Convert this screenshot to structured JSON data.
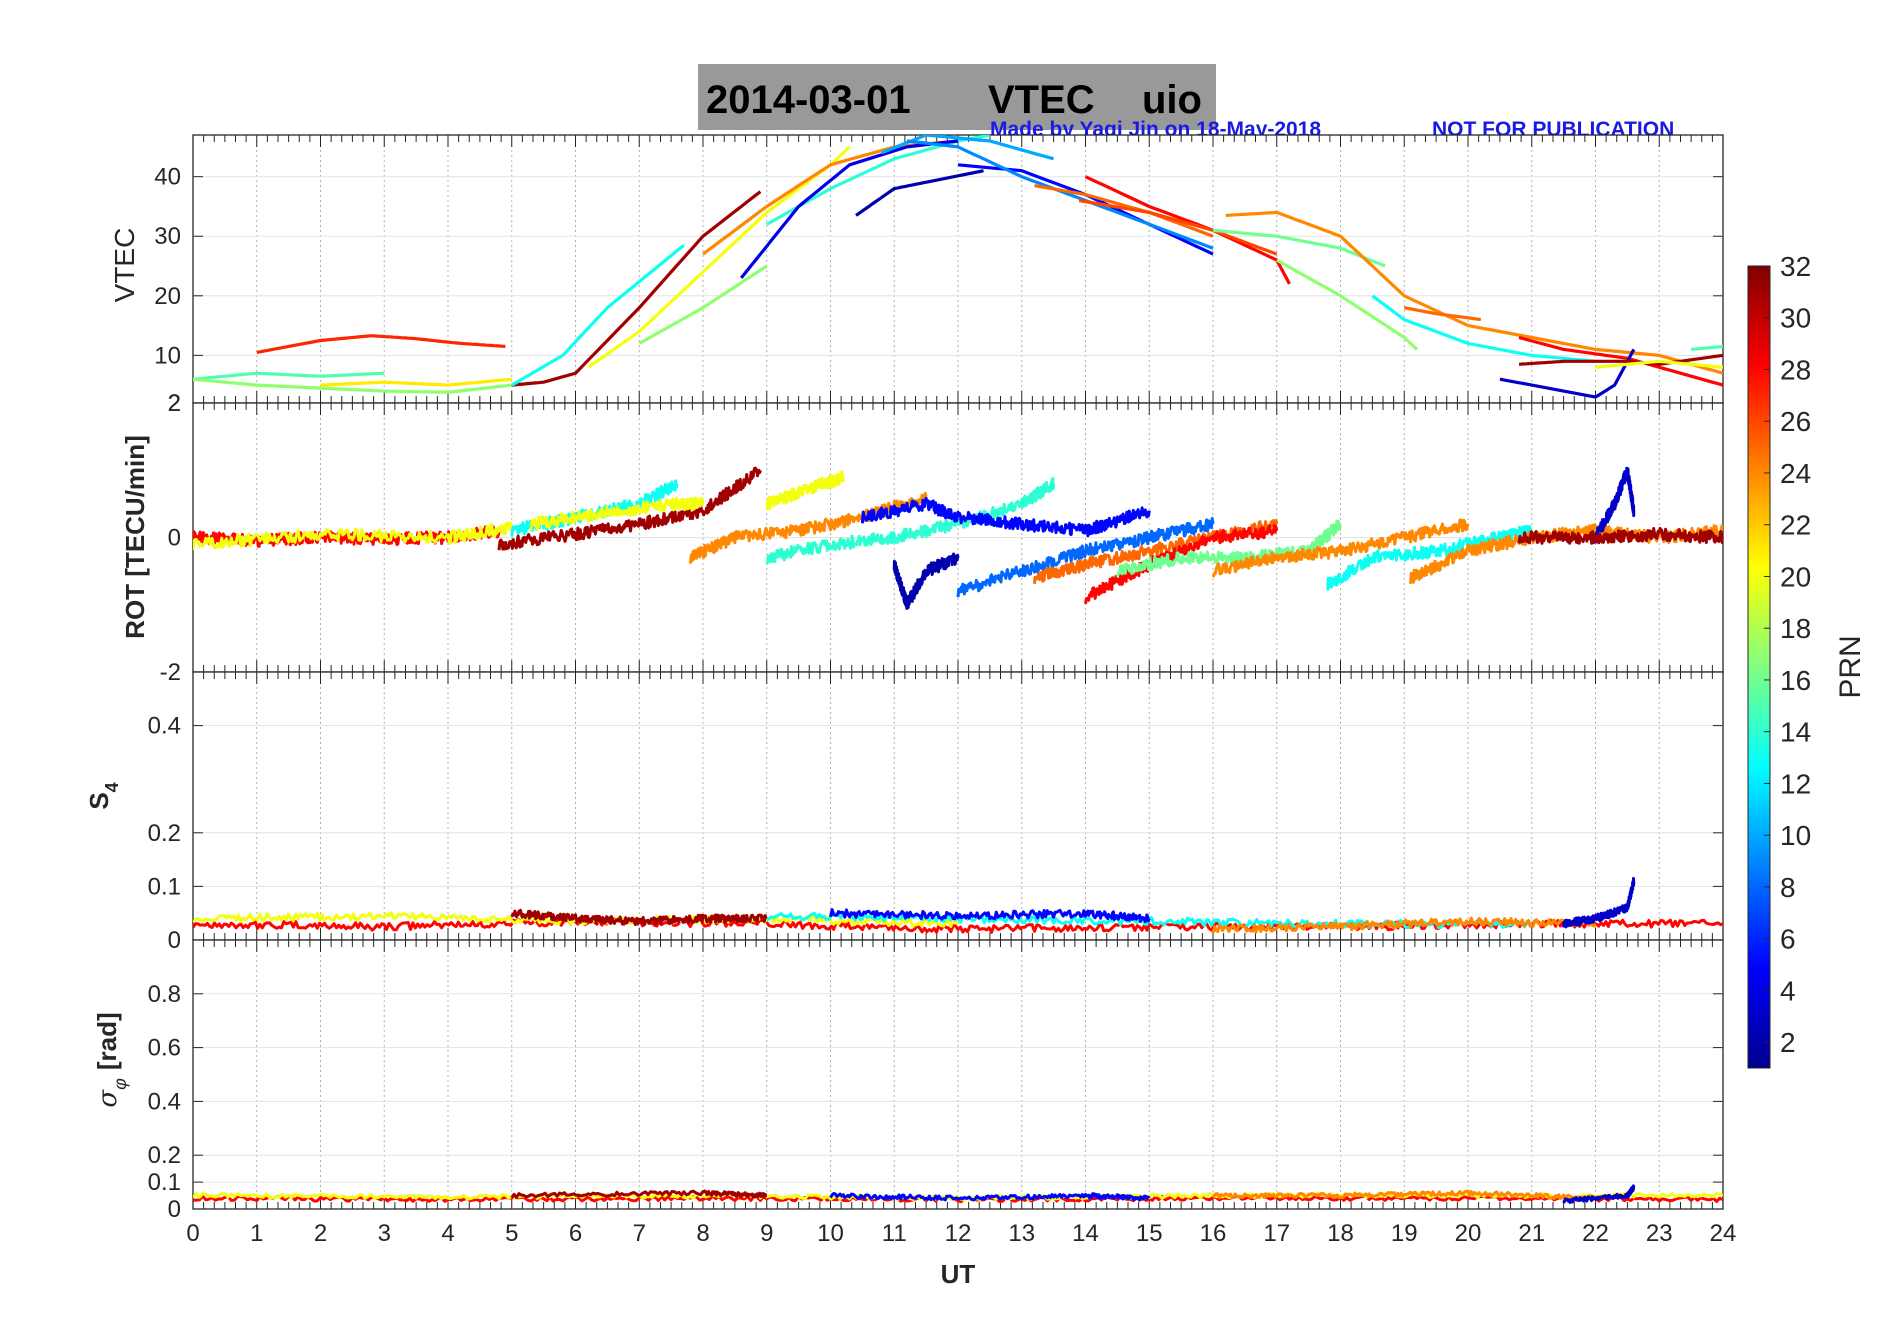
{
  "title": {
    "date": "2014-03-01",
    "quantity": "VTEC",
    "station": "uio",
    "background": "#999999"
  },
  "credit": {
    "author_text": "Made by Yaqi Jin on 18-May-2018",
    "notice": "NOT FOR PUBLICATION",
    "color": "#1a1ae6"
  },
  "x_axis": {
    "label": "UT",
    "min": 0,
    "max": 24,
    "ticks": [
      "0",
      "1",
      "2",
      "3",
      "4",
      "5",
      "6",
      "7",
      "8",
      "9",
      "10",
      "11",
      "12",
      "13",
      "14",
      "15",
      "16",
      "17",
      "18",
      "19",
      "20",
      "21",
      "22",
      "23",
      "24"
    ]
  },
  "colorbar": {
    "label": "PRN",
    "ticks": [
      "2",
      "4",
      "6",
      "8",
      "10",
      "12",
      "14",
      "16",
      "18",
      "20",
      "22",
      "24",
      "26",
      "28",
      "30",
      "32"
    ],
    "palette": [
      "#00008f",
      "#0000ff",
      "#0080ff",
      "#00ffff",
      "#80ff80",
      "#ffff00",
      "#ff8000",
      "#ff0000",
      "#800000"
    ]
  },
  "chart_data": [
    {
      "type": "line",
      "name": "vtec-panel",
      "ylabel": "VTEC",
      "ylim": [
        2,
        47
      ],
      "yticks": [
        "10",
        "20",
        "30",
        "40"
      ],
      "bottom_label": "2",
      "color_by": "PRN",
      "series": [
        {
          "prn": 27,
          "x": [
            1.0,
            2.0,
            2.8,
            3.5,
            4.2,
            4.9
          ],
          "y": [
            10.5,
            12.5,
            13.3,
            12.8,
            12.0,
            11.5
          ]
        },
        {
          "prn": 15,
          "x": [
            0.0,
            1.0,
            2.0,
            3.0
          ],
          "y": [
            6.0,
            7.0,
            6.5,
            7.0
          ]
        },
        {
          "prn": 17,
          "x": [
            0.0,
            1.0,
            2.0,
            3.0,
            4.0,
            5.0
          ],
          "y": [
            6.0,
            5.0,
            4.5,
            4.0,
            3.8,
            5.0
          ]
        },
        {
          "prn": 21,
          "x": [
            2.0,
            3.0,
            4.0,
            5.0
          ],
          "y": [
            5.0,
            5.5,
            5.0,
            6.0
          ]
        },
        {
          "prn": 31,
          "x": [
            5.0,
            5.5,
            6.0,
            7.0,
            8.0,
            8.9
          ],
          "y": [
            5.0,
            5.5,
            7.0,
            18.0,
            30.0,
            37.5
          ]
        },
        {
          "prn": 13,
          "x": [
            5.0,
            5.8,
            6.5,
            7.7
          ],
          "y": [
            5.0,
            10.0,
            18.0,
            28.5
          ]
        },
        {
          "prn": 20,
          "x": [
            6.2,
            7.0,
            8.0,
            9.0,
            10.0,
            10.3
          ],
          "y": [
            8.0,
            14.0,
            24.0,
            34.0,
            42.0,
            45.0
          ]
        },
        {
          "prn": 17,
          "x": [
            7.0,
            8.0,
            9.0
          ],
          "y": [
            12.0,
            18.0,
            25.0
          ]
        },
        {
          "prn": 24,
          "x": [
            8.0,
            9.0,
            10.0,
            11.0,
            12.0
          ],
          "y": [
            27.0,
            35.0,
            42.0,
            45.0,
            46.0
          ]
        },
        {
          "prn": 14,
          "x": [
            9.0,
            10.0,
            11.0,
            12.0,
            12.5
          ],
          "y": [
            32.0,
            38.0,
            43.0,
            46.0,
            47.0
          ]
        },
        {
          "prn": 4,
          "x": [
            8.6,
            9.5,
            10.3,
            11.2,
            12.0
          ],
          "y": [
            23.0,
            35.0,
            42.0,
            45.0,
            46.0
          ]
        },
        {
          "prn": 2,
          "x": [
            10.4,
            11.0,
            11.7,
            12.4
          ],
          "y": [
            33.5,
            38.0,
            39.5,
            41.0
          ]
        },
        {
          "prn": 10,
          "x": [
            10.8,
            11.5,
            12.5,
            13.5
          ],
          "y": [
            44.0,
            47.0,
            46.0,
            43.0
          ]
        },
        {
          "prn": 5,
          "x": [
            12.0,
            13.0,
            14.0,
            15.0,
            16.0
          ],
          "y": [
            42.0,
            41.0,
            37.0,
            32.0,
            27.0
          ]
        },
        {
          "prn": 9,
          "x": [
            11.2,
            12.0,
            13.0,
            14.0,
            15.0,
            16.0
          ],
          "y": [
            46.0,
            45.0,
            40.0,
            36.0,
            32.0,
            28.0
          ]
        },
        {
          "prn": 25,
          "x": [
            13.2,
            14.0,
            15.0,
            16.0
          ],
          "y": [
            38.5,
            37.0,
            34.0,
            30.0
          ]
        },
        {
          "prn": 28,
          "x": [
            14.0,
            15.0,
            16.0,
            17.0,
            17.2
          ],
          "y": [
            40.0,
            35.0,
            31.0,
            26.0,
            22.0
          ]
        },
        {
          "prn": 26,
          "x": [
            13.9,
            15.0,
            16.0,
            17.0
          ],
          "y": [
            36.0,
            34.0,
            31.0,
            27.0
          ]
        },
        {
          "prn": 16,
          "x": [
            16.0,
            17.0,
            18.0,
            18.7
          ],
          "y": [
            31.0,
            30.0,
            28.0,
            25.0
          ]
        },
        {
          "prn": 24,
          "x": [
            16.2,
            17.0,
            18.0,
            19.0,
            20.0,
            21.0,
            22.0,
            23.0,
            24.0
          ],
          "y": [
            33.5,
            34.0,
            30.0,
            20.0,
            15.0,
            13.0,
            11.0,
            10.0,
            7.0
          ]
        },
        {
          "prn": 17,
          "x": [
            17.0,
            18.0,
            19.0,
            19.2
          ],
          "y": [
            26.0,
            20.0,
            13.0,
            11.0
          ]
        },
        {
          "prn": 13,
          "x": [
            18.5,
            19.0,
            20.0,
            21.0,
            22.0
          ],
          "y": [
            20.0,
            16.0,
            12.0,
            10.0,
            9.0
          ]
        },
        {
          "prn": 25,
          "x": [
            19.0,
            19.5,
            20.2
          ],
          "y": [
            18.0,
            17.0,
            16.0
          ]
        },
        {
          "prn": 28,
          "x": [
            20.8,
            21.5,
            22.5,
            23.0,
            24.0
          ],
          "y": [
            13.0,
            11.0,
            9.5,
            8.0,
            5.0
          ]
        },
        {
          "prn": 3,
          "x": [
            20.5,
            21.0,
            21.5,
            22.0,
            22.3,
            22.6
          ],
          "y": [
            6.0,
            5.0,
            4.0,
            3.0,
            5.0,
            11.0
          ]
        },
        {
          "prn": 31,
          "x": [
            20.8,
            21.5,
            22.5,
            23.0,
            24.0
          ],
          "y": [
            8.5,
            9.0,
            9.0,
            8.5,
            10.0
          ]
        },
        {
          "prn": 20,
          "x": [
            22.0,
            23.0,
            24.0
          ],
          "y": [
            8.0,
            9.0,
            8.0
          ]
        },
        {
          "prn": 15,
          "x": [
            23.5,
            24.0
          ],
          "y": [
            11.0,
            11.5
          ]
        }
      ]
    },
    {
      "type": "line",
      "name": "rot-panel",
      "ylabel": "ROT [TECU/min]",
      "ylim": [
        -2,
        2
      ],
      "yticks": [
        "2",
        "0",
        "-2"
      ],
      "color_by": "PRN",
      "series": [
        {
          "prn": 28,
          "x": [
            0.0,
            1.0,
            2.0,
            3.0,
            4.0,
            4.8
          ],
          "y": [
            0.0,
            -0.05,
            0.0,
            -0.02,
            0.0,
            0.1
          ]
        },
        {
          "prn": 20,
          "x": [
            0.0,
            2.0,
            4.0,
            5.0
          ],
          "y": [
            -0.1,
            0.05,
            0.0,
            0.15
          ]
        },
        {
          "prn": 31,
          "x": [
            4.8,
            6.0,
            7.0,
            8.0,
            8.9
          ],
          "y": [
            -0.1,
            0.05,
            0.2,
            0.4,
            1.0
          ]
        },
        {
          "prn": 13,
          "x": [
            5.0,
            6.0,
            7.0,
            7.6
          ],
          "y": [
            0.1,
            0.3,
            0.5,
            0.8
          ]
        },
        {
          "prn": 20,
          "x": [
            5.3,
            6.0,
            7.5,
            8.0
          ],
          "y": [
            0.2,
            0.3,
            0.5,
            0.5
          ]
        },
        {
          "prn": 24,
          "x": [
            7.8,
            8.5,
            9.5,
            10.5,
            11.5
          ],
          "y": [
            -0.3,
            0.0,
            0.1,
            0.3,
            0.6
          ]
        },
        {
          "prn": 20,
          "x": [
            9.0,
            9.6,
            10.2
          ],
          "y": [
            0.5,
            0.7,
            0.9
          ]
        },
        {
          "prn": 14,
          "x": [
            9.0,
            10.0,
            11.0,
            12.0,
            13.0,
            13.5
          ],
          "y": [
            -0.3,
            -0.1,
            0.0,
            0.2,
            0.5,
            0.8
          ]
        },
        {
          "prn": 5,
          "x": [
            10.5,
            11.5,
            12.0,
            13.0,
            14.0,
            15.0
          ],
          "y": [
            0.3,
            0.5,
            0.3,
            0.2,
            0.1,
            0.4
          ]
        },
        {
          "prn": 2,
          "x": [
            11.0,
            11.2,
            11.5,
            12.0
          ],
          "y": [
            -0.4,
            -1.0,
            -0.5,
            -0.3
          ]
        },
        {
          "prn": 8,
          "x": [
            12.0,
            13.0,
            14.0,
            15.0,
            16.0
          ],
          "y": [
            -0.8,
            -0.5,
            -0.2,
            0.0,
            0.2
          ]
        },
        {
          "prn": 25,
          "x": [
            13.2,
            14.0,
            15.0,
            16.0,
            17.0
          ],
          "y": [
            -0.6,
            -0.4,
            -0.2,
            0.0,
            0.2
          ]
        },
        {
          "prn": 28,
          "x": [
            14.0,
            15.0,
            16.0,
            17.0
          ],
          "y": [
            -0.9,
            -0.4,
            0.0,
            0.1
          ]
        },
        {
          "prn": 16,
          "x": [
            14.5,
            15.5,
            16.5,
            17.5,
            18.0
          ],
          "y": [
            -0.5,
            -0.3,
            -0.3,
            -0.2,
            0.2
          ]
        },
        {
          "prn": 24,
          "x": [
            16.0,
            17.0,
            18.0,
            19.0,
            20.0
          ],
          "y": [
            -0.5,
            -0.3,
            -0.2,
            0.0,
            0.2
          ]
        },
        {
          "prn": 13,
          "x": [
            17.8,
            18.5,
            19.5,
            20.5,
            21.0
          ],
          "y": [
            -0.7,
            -0.3,
            -0.2,
            0.0,
            0.1
          ]
        },
        {
          "prn": 24,
          "x": [
            19.1,
            20.0,
            21.0,
            22.0,
            23.0,
            24.0
          ],
          "y": [
            -0.6,
            -0.2,
            0.0,
            0.1,
            0.0,
            0.1
          ]
        },
        {
          "prn": 3,
          "x": [
            22.0,
            22.3,
            22.5,
            22.6
          ],
          "y": [
            0.0,
            0.5,
            1.0,
            0.4
          ]
        },
        {
          "prn": 31,
          "x": [
            20.8,
            22.0,
            23.0,
            24.0
          ],
          "y": [
            0.0,
            0.0,
            0.05,
            0.0
          ]
        }
      ]
    },
    {
      "type": "line",
      "name": "s4-panel",
      "ylabel_main": "S",
      "ylabel_sub": "4",
      "ylim": [
        0,
        0.5
      ],
      "yticks": [
        "0.1",
        "0.2",
        "0.4"
      ],
      "bottom_label": "0",
      "color_by": "PRN",
      "series": [
        {
          "prn": 28,
          "x": [
            0,
            3,
            6,
            9,
            12,
            15,
            18,
            21,
            24
          ],
          "y": [
            0.03,
            0.025,
            0.035,
            0.03,
            0.02,
            0.025,
            0.025,
            0.03,
            0.03
          ]
        },
        {
          "prn": 20,
          "x": [
            0,
            3,
            6,
            9,
            12
          ],
          "y": [
            0.04,
            0.045,
            0.035,
            0.04,
            0.03
          ]
        },
        {
          "prn": 31,
          "x": [
            5,
            6,
            7,
            8,
            9
          ],
          "y": [
            0.05,
            0.04,
            0.035,
            0.04,
            0.04
          ]
        },
        {
          "prn": 13,
          "x": [
            9,
            12,
            15,
            18,
            21
          ],
          "y": [
            0.045,
            0.04,
            0.035,
            0.03,
            0.03
          ]
        },
        {
          "prn": 5,
          "x": [
            10,
            12,
            14,
            15
          ],
          "y": [
            0.05,
            0.045,
            0.05,
            0.04
          ]
        },
        {
          "prn": 24,
          "x": [
            16,
            18,
            20,
            22
          ],
          "y": [
            0.02,
            0.025,
            0.035,
            0.03
          ]
        },
        {
          "prn": 3,
          "x": [
            21.5,
            22.0,
            22.5,
            22.6
          ],
          "y": [
            0.03,
            0.04,
            0.06,
            0.11
          ]
        }
      ]
    },
    {
      "type": "line",
      "name": "sigma-phi-panel",
      "ylabel": "σ_φ [rad]",
      "ylabel_main": "σ",
      "ylabel_sub": "φ",
      "ylabel_unit": "[rad]",
      "ylim": [
        0,
        1
      ],
      "yticks": [
        "0",
        "0.1",
        "0.2",
        "0.4",
        "0.6",
        "0.8"
      ],
      "color_by": "PRN",
      "series": [
        {
          "prn": 28,
          "x": [
            0,
            4,
            8,
            12,
            16,
            20,
            24
          ],
          "y": [
            0.04,
            0.035,
            0.04,
            0.035,
            0.04,
            0.04,
            0.035
          ]
        },
        {
          "prn": 20,
          "x": [
            0,
            4,
            8,
            12,
            16,
            20,
            24
          ],
          "y": [
            0.05,
            0.045,
            0.05,
            0.04,
            0.05,
            0.05,
            0.05
          ]
        },
        {
          "prn": 31,
          "x": [
            5,
            8,
            9
          ],
          "y": [
            0.05,
            0.06,
            0.05
          ]
        },
        {
          "prn": 5,
          "x": [
            10,
            12,
            14,
            15
          ],
          "y": [
            0.05,
            0.04,
            0.05,
            0.04
          ]
        },
        {
          "prn": 24,
          "x": [
            16,
            18,
            20,
            22
          ],
          "y": [
            0.05,
            0.05,
            0.06,
            0.04
          ]
        },
        {
          "prn": 3,
          "x": [
            21.5,
            22.5,
            22.6
          ],
          "y": [
            0.03,
            0.05,
            0.08
          ]
        }
      ]
    }
  ]
}
